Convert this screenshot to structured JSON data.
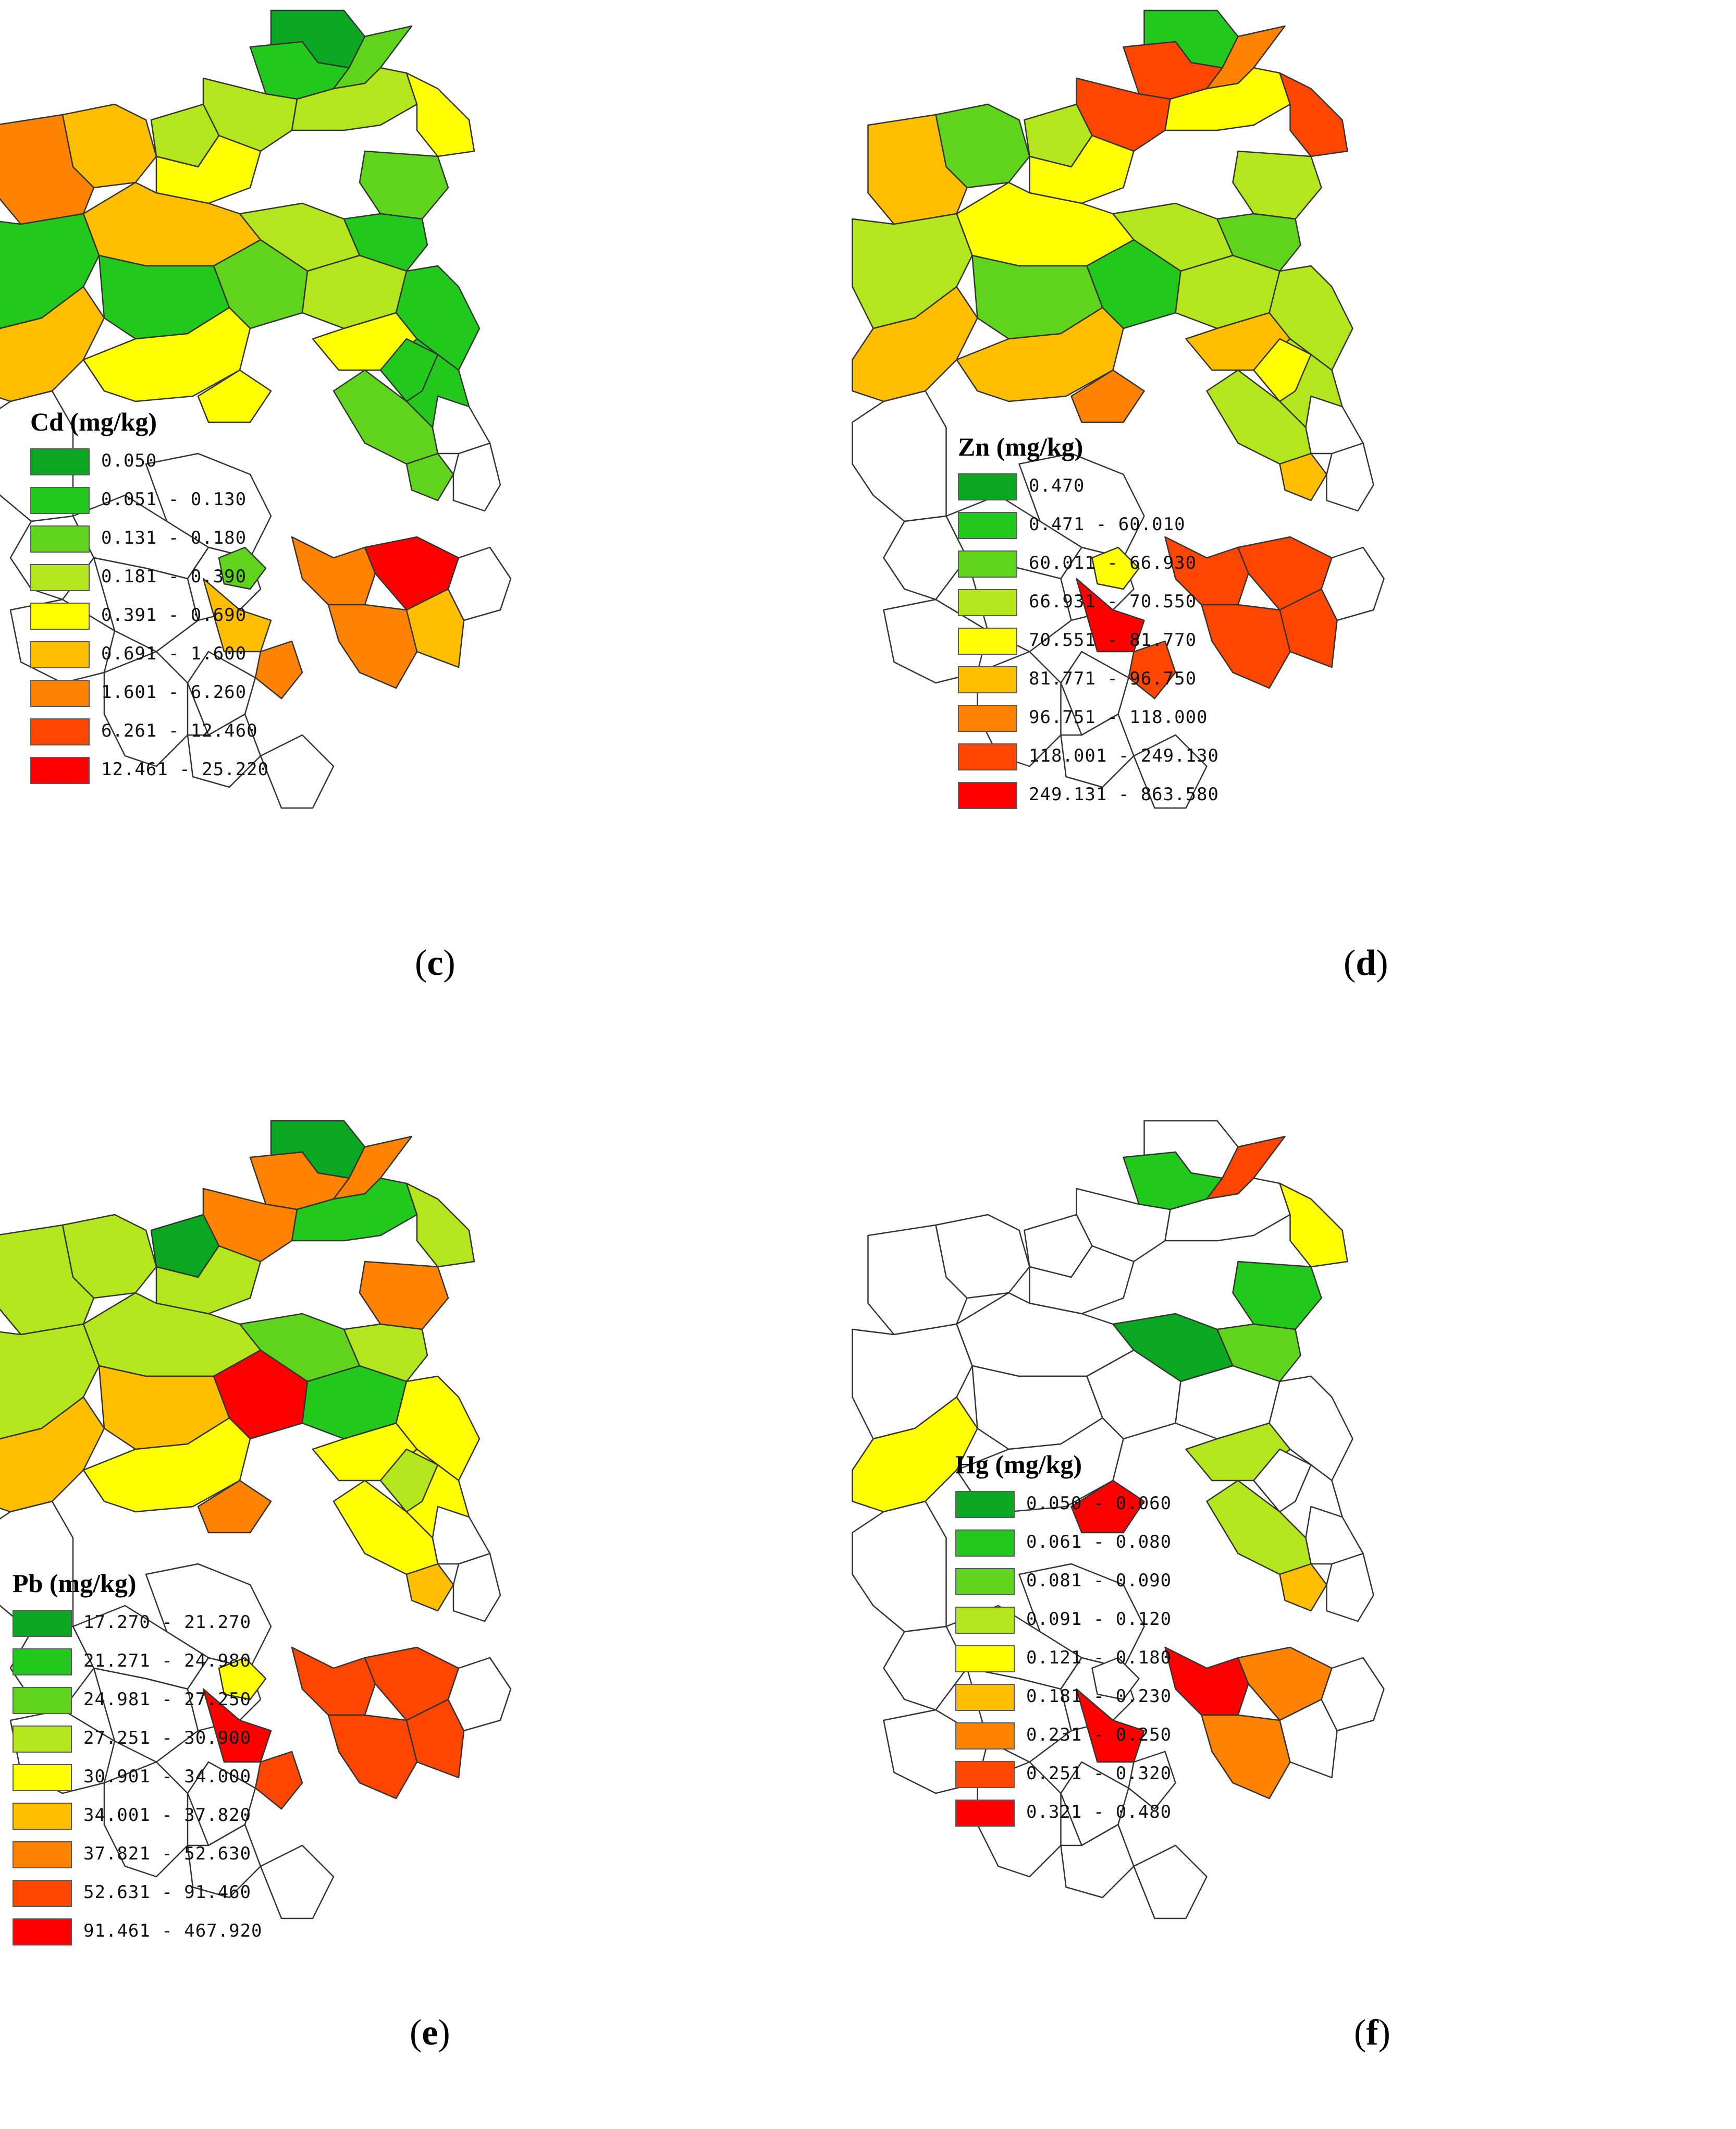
{
  "panels": [
    {
      "id": "c",
      "caption_open": "(",
      "caption_letter": "c",
      "caption_close": ")",
      "legend": {
        "title": "Cd (mg/kg)",
        "items": [
          {
            "label": "0.050",
            "color": "#0aa820"
          },
          {
            "label": "0.051 - 0.130",
            "color": "#22c81c"
          },
          {
            "label": "0.131 - 0.180",
            "color": "#5ed41c"
          },
          {
            "label": "0.181 - 0.390",
            "color": "#b4e61e"
          },
          {
            "label": "0.391 - 0.690",
            "color": "#ffff00"
          },
          {
            "label": "0.691 - 1.600",
            "color": "#ffbe00"
          },
          {
            "label": "1.601 - 6.260",
            "color": "#ff8200"
          },
          {
            "label": "6.261 - 12.460",
            "color": "#ff4600"
          },
          {
            "label": "12.461 - 25.220",
            "color": "#ff0000"
          }
        ]
      }
    },
    {
      "id": "d",
      "caption_open": "(",
      "caption_letter": "d",
      "caption_close": ")",
      "legend": {
        "title": "Zn (mg/kg)",
        "items": [
          {
            "label": "0.470",
            "color": "#0aa820"
          },
          {
            "label": "0.471 - 60.010",
            "color": "#22c81c"
          },
          {
            "label": "60.011 - 66.930",
            "color": "#5ed41c"
          },
          {
            "label": "66.931 - 70.550",
            "color": "#b4e61e"
          },
          {
            "label": "70.551 - 81.770",
            "color": "#ffff00"
          },
          {
            "label": "81.771 - 96.750",
            "color": "#ffbe00"
          },
          {
            "label": "96.751 - 118.000",
            "color": "#ff8200"
          },
          {
            "label": "118.001 - 249.130",
            "color": "#ff4600"
          },
          {
            "label": "249.131 - 863.580",
            "color": "#ff0000"
          }
        ]
      }
    },
    {
      "id": "e",
      "caption_open": "(",
      "caption_letter": "e",
      "caption_close": ")",
      "legend": {
        "title": "Pb (mg/kg)",
        "items": [
          {
            "label": "17.270 - 21.270",
            "color": "#0aa820"
          },
          {
            "label": "21.271 - 24.980",
            "color": "#22c81c"
          },
          {
            "label": "24.981 - 27.250",
            "color": "#5ed41c"
          },
          {
            "label": "27.251 - 30.900",
            "color": "#b4e61e"
          },
          {
            "label": "30.901 - 34.000",
            "color": "#ffff00"
          },
          {
            "label": "34.001 - 37.820",
            "color": "#ffbe00"
          },
          {
            "label": "37.821 - 52.630",
            "color": "#ff8200"
          },
          {
            "label": "52.631 - 91.460",
            "color": "#ff4600"
          },
          {
            "label": "91.461 - 467.920",
            "color": "#ff0000"
          }
        ]
      }
    },
    {
      "id": "f",
      "caption_open": "(",
      "caption_letter": "f",
      "caption_close": ")",
      "legend": {
        "title": "Hg (mg/kg)",
        "items": [
          {
            "label": "0.050 - 0.060",
            "color": "#0aa820"
          },
          {
            "label": "0.061 - 0.080",
            "color": "#22c81c"
          },
          {
            "label": "0.081 - 0.090",
            "color": "#5ed41c"
          },
          {
            "label": "0.091 - 0.120",
            "color": "#b4e61e"
          },
          {
            "label": "0.121 - 0.180",
            "color": "#ffff00"
          },
          {
            "label": "0.181 - 0.230",
            "color": "#ffbe00"
          },
          {
            "label": "0.231 - 0.250",
            "color": "#ff8200"
          },
          {
            "label": "0.251 - 0.320",
            "color": "#ff4600"
          },
          {
            "label": "0.321 - 0.480",
            "color": "#ff0000"
          }
        ]
      }
    }
  ],
  "regions": {
    "c": [
      0,
      1,
      2,
      3,
      3,
      4,
      2,
      5,
      3,
      4,
      6,
      5,
      3,
      1,
      1,
      1,
      2,
      3,
      4,
      1,
      1,
      2,
      2,
      1,
      5,
      4,
      4,
      6,
      8,
      6,
      5,
      -1,
      -1,
      -1,
      -1,
      -1,
      -1,
      -1,
      -1,
      -1,
      -1,
      -1,
      5,
      6,
      -1,
      -1,
      -1,
      2
    ],
    "d": [
      1,
      7,
      6,
      7,
      4,
      7,
      3,
      2,
      3,
      4,
      5,
      4,
      3,
      2,
      3,
      2,
      1,
      3,
      5,
      3,
      3,
      3,
      5,
      4,
      5,
      5,
      6,
      7,
      7,
      7,
      7,
      -1,
      -1,
      -1,
      -1,
      -1,
      -1,
      -1,
      -1,
      -1,
      -1,
      -1,
      8,
      7,
      -1,
      -1,
      -1,
      4
    ],
    "e": [
      0,
      6,
      6,
      6,
      1,
      3,
      6,
      3,
      0,
      3,
      3,
      3,
      2,
      3,
      3,
      5,
      8,
      1,
      4,
      4,
      4,
      4,
      5,
      3,
      5,
      4,
      6,
      7,
      7,
      7,
      7,
      -1,
      -1,
      -1,
      -1,
      -1,
      -1,
      -1,
      -1,
      -1,
      -1,
      -1,
      8,
      7,
      -1,
      -1,
      -1,
      4
    ],
    "f": [
      -1,
      1,
      7,
      -1,
      -1,
      4,
      1,
      -1,
      -1,
      -1,
      -1,
      -1,
      0,
      2,
      -1,
      -1,
      -1,
      -1,
      3,
      -1,
      -1,
      3,
      5,
      -1,
      4,
      -1,
      8,
      8,
      6,
      6,
      -1,
      -1,
      -1,
      -1,
      -1,
      -1,
      -1,
      -1,
      -1,
      -1,
      -1,
      -1,
      8,
      -1,
      -1,
      -1,
      -1,
      -1
    ]
  }
}
